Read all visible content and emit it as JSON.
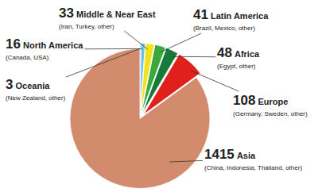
{
  "chart_data": {
    "type": "pie",
    "categories": [
      "Oceania",
      "North America",
      "Middle & Near East",
      "Latin America",
      "Africa",
      "Europe",
      "Asia"
    ],
    "category_details": [
      "(New Zealand, other)",
      "(Canada, USA)",
      "(Iran, Turkey, other)",
      "(Brazil, Mexico, other)",
      "(Egypt, other)",
      "(Germany, Sweden, other)",
      "(China, Indonesia, Thailand, other)"
    ],
    "values": [
      3,
      16,
      33,
      41,
      48,
      108,
      1415
    ],
    "colors": [
      "#2f6fc4",
      "#6fc0e8",
      "#f2e21a",
      "#3aa83a",
      "#17793a",
      "#e0201b",
      "#d38b6e"
    ],
    "data_labels": true
  }
}
